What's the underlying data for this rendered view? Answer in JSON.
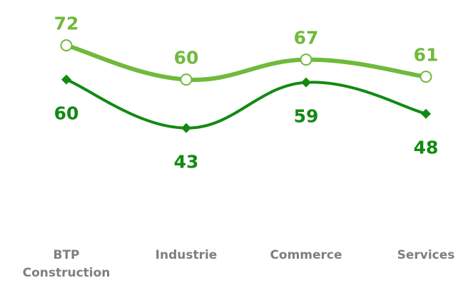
{
  "chart_data": {
    "type": "line",
    "categories": [
      [
        "BTP",
        "Construction"
      ],
      [
        "Industrie"
      ],
      [
        "Commerce"
      ],
      [
        "Services"
      ]
    ],
    "series": [
      {
        "values": [
          72,
          60,
          67,
          61
        ],
        "color": "#6fba3c",
        "marker": "open-circle",
        "label_position": "above"
      },
      {
        "values": [
          60,
          43,
          59,
          48
        ],
        "color": "#128a12",
        "marker": "diamond",
        "label_position": "below"
      }
    ],
    "data_labels": true,
    "legend": "none",
    "grid": false,
    "y_axis_visible": false
  }
}
